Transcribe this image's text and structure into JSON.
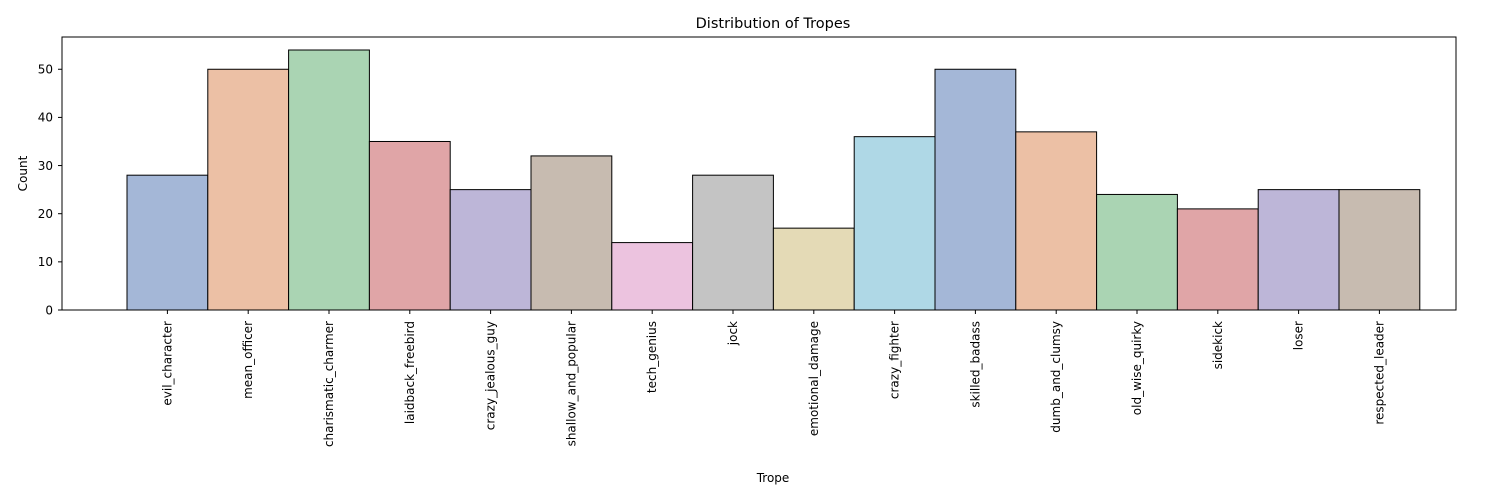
{
  "chart_data": {
    "type": "bar",
    "title": "Distribution of Tropes",
    "xlabel": "Trope",
    "ylabel": "Count",
    "ylim": [
      0,
      56.7
    ],
    "yticks": [
      0,
      10,
      20,
      30,
      40,
      50
    ],
    "grid": false,
    "legend": "none",
    "categories": [
      "evil_character",
      "mean_officer",
      "charismatic_charmer",
      "laidback_freebird",
      "crazy_jealous_guy",
      "shallow_and_popular",
      "tech_genius",
      "jock",
      "emotional_damage",
      "crazy_fighter",
      "skilled_badass",
      "dumb_and_clumsy",
      "old_wise_quirky",
      "sidekick",
      "loser",
      "respected_leader"
    ],
    "values": [
      28,
      50,
      54,
      35,
      25,
      32,
      14,
      28,
      17,
      36,
      50,
      37,
      24,
      21,
      25,
      25
    ],
    "colors": [
      "#a4b7d7",
      "#ecc0a5",
      "#aad4b3",
      "#e0a5a7",
      "#bdb6d8",
      "#c7bbb0",
      "#ecc3df",
      "#c4c4c4",
      "#e4dab6",
      "#afd8e6",
      "#a4b7d7",
      "#ecc0a5",
      "#aad4b3",
      "#e0a5a7",
      "#bdb6d8",
      "#c7bbb0"
    ]
  }
}
